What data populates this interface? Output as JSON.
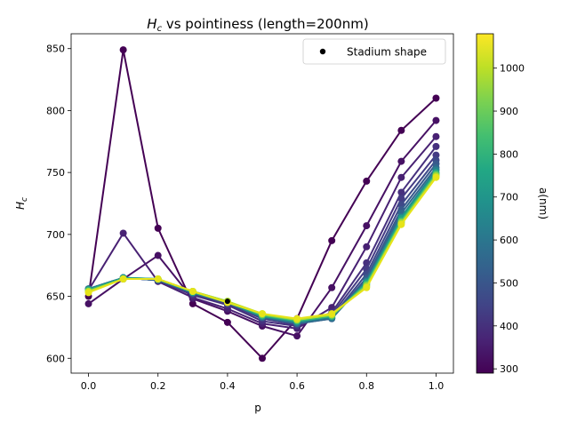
{
  "chart_data": {
    "type": "line",
    "title_main": "H",
    "title_sub": "c",
    "title_rest": " vs pointiness (length=200nm)",
    "xlabel": "p",
    "ylabel_main": "H",
    "ylabel_sub": "c",
    "xlim": [
      -0.05,
      1.05
    ],
    "ylim": [
      588,
      862
    ],
    "x_ticks": [
      0.0,
      0.2,
      0.4,
      0.6,
      0.8,
      1.0
    ],
    "x_tick_labels": [
      "0.0",
      "0.2",
      "0.4",
      "0.6",
      "0.8",
      "1.0"
    ],
    "y_ticks": [
      600,
      650,
      700,
      750,
      800,
      850
    ],
    "y_tick_labels": [
      "600",
      "650",
      "700",
      "750",
      "800",
      "850"
    ],
    "x": [
      0.0,
      0.1,
      0.2,
      0.3,
      0.4,
      0.5,
      0.6,
      0.7,
      0.8,
      0.9,
      1.0
    ],
    "colorbar": {
      "label": "a(nm)",
      "range": [
        290,
        1080
      ],
      "ticks": [
        300,
        400,
        500,
        600,
        700,
        800,
        900,
        1000
      ],
      "tick_labels": [
        "300",
        "400",
        "500",
        "600",
        "700",
        "800",
        "900",
        "1000"
      ],
      "colormap": "viridis"
    },
    "series": [
      {
        "a": 300,
        "color": "#440154",
        "values": [
          650,
          849,
          705,
          644,
          629,
          600,
          632,
          695,
          743,
          784,
          810
        ]
      },
      {
        "a": 340,
        "color": "#471164",
        "values": [
          644,
          664,
          683,
          648,
          638,
          626,
          618,
          657,
          707,
          759,
          792
        ]
      },
      {
        "a": 380,
        "color": "#482173",
        "values": [
          655,
          701,
          662,
          649,
          640,
          628,
          624,
          641,
          690,
          746,
          779
        ]
      },
      {
        "a": 420,
        "color": "#46307e",
        "values": [
          655,
          665,
          663,
          651,
          643,
          630,
          626,
          637,
          677,
          734,
          771
        ]
      },
      {
        "a": 460,
        "color": "#443b84",
        "values": [
          656,
          665,
          663,
          652,
          644,
          632,
          627,
          635,
          672,
          729,
          764
        ]
      },
      {
        "a": 500,
        "color": "#3e4989",
        "values": [
          656,
          665,
          663,
          653,
          645,
          633,
          628,
          633,
          668,
          724,
          760
        ]
      },
      {
        "a": 560,
        "color": "#38598c",
        "values": [
          656,
          665,
          663,
          653,
          645,
          633,
          628,
          632,
          665,
          720,
          757
        ]
      },
      {
        "a": 620,
        "color": "#31688e",
        "values": [
          656,
          665,
          663,
          653,
          645,
          633,
          628,
          632,
          663,
          717,
          754
        ]
      },
      {
        "a": 680,
        "color": "#26828e",
        "values": [
          656,
          665,
          664,
          653,
          645,
          634,
          629,
          633,
          662,
          714,
          752
        ]
      },
      {
        "a": 740,
        "color": "#1f9e89",
        "values": [
          655,
          665,
          664,
          653,
          645,
          634,
          630,
          634,
          661,
          713,
          750
        ]
      },
      {
        "a": 820,
        "color": "#35b779",
        "values": [
          655,
          664,
          664,
          654,
          646,
          635,
          630,
          634,
          660,
          711,
          749
        ]
      },
      {
        "a": 900,
        "color": "#6ece58",
        "values": [
          654,
          664,
          664,
          654,
          646,
          635,
          631,
          635,
          659,
          710,
          748
        ]
      },
      {
        "a": 980,
        "color": "#b5de2b",
        "values": [
          654,
          664,
          664,
          654,
          646,
          636,
          631,
          635,
          658,
          709,
          747
        ]
      },
      {
        "a": 1080,
        "color": "#e6e419",
        "values": [
          653,
          664,
          664,
          654,
          645,
          636,
          632,
          636,
          657,
          708,
          746
        ]
      }
    ],
    "stadium": {
      "label": "Stadium shape",
      "x": 0.4,
      "y": 646,
      "color": "#000000"
    },
    "legend_position": "top-right"
  }
}
